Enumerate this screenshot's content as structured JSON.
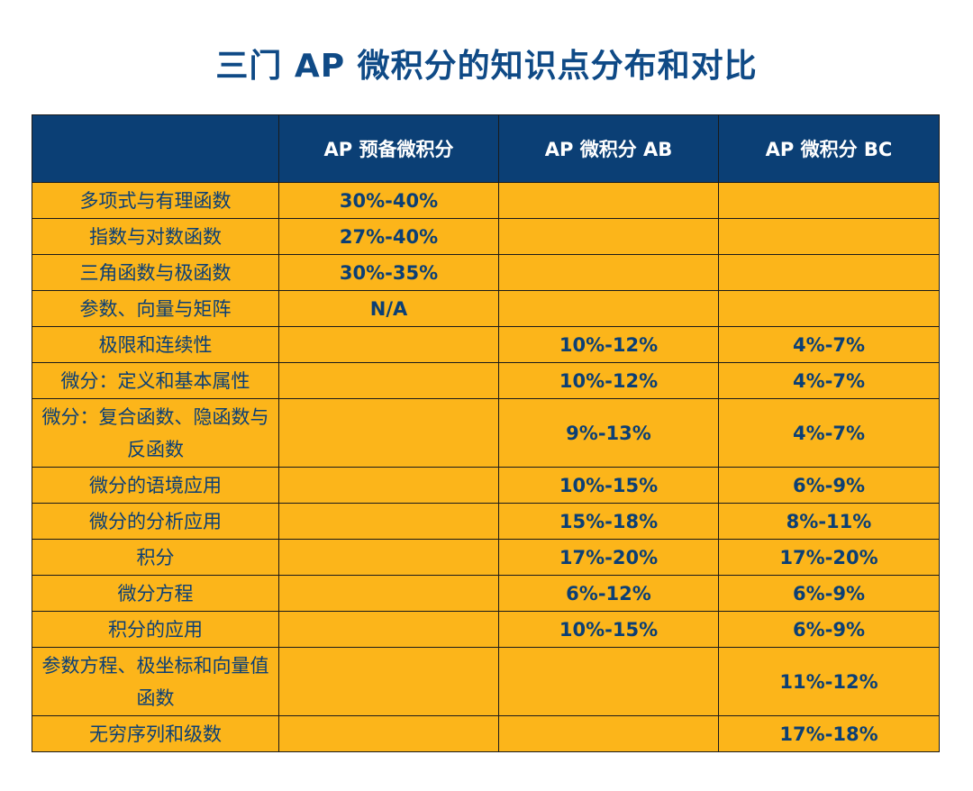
{
  "title": "三门 AP 微积分的知识点分布和对比",
  "table": {
    "headers": [
      "",
      "AP 预备微积分",
      "AP 微积分 AB",
      "AP 微积分 BC"
    ],
    "rows": [
      {
        "topic": "多项式与有理函数",
        "precalc": "30%-40%",
        "ab": "",
        "bc": ""
      },
      {
        "topic": "指数与对数函数",
        "precalc": "27%-40%",
        "ab": "",
        "bc": ""
      },
      {
        "topic": "三角函数与极函数",
        "precalc": "30%-35%",
        "ab": "",
        "bc": ""
      },
      {
        "topic": "参数、向量与矩阵",
        "precalc": "N/A",
        "ab": "",
        "bc": ""
      },
      {
        "topic": "极限和连续性",
        "precalc": "",
        "ab": "10%-12%",
        "bc": "4%-7%"
      },
      {
        "topic": "微分：定义和基本属性",
        "precalc": "",
        "ab": "10%-12%",
        "bc": "4%-7%"
      },
      {
        "topic": "微分：复合函数、隐函数与反函数",
        "precalc": "",
        "ab": "9%-13%",
        "bc": "4%-7%"
      },
      {
        "topic": "微分的语境应用",
        "precalc": "",
        "ab": "10%-15%",
        "bc": "6%-9%"
      },
      {
        "topic": "微分的分析应用",
        "precalc": "",
        "ab": "15%-18%",
        "bc": "8%-11%"
      },
      {
        "topic": "积分",
        "precalc": "",
        "ab": "17%-20%",
        "bc": "17%-20%"
      },
      {
        "topic": "微分方程",
        "precalc": "",
        "ab": "6%-12%",
        "bc": "6%-9%"
      },
      {
        "topic": "积分的应用",
        "precalc": "",
        "ab": "10%-15%",
        "bc": "6%-9%"
      },
      {
        "topic": "参数方程、极坐标和向量值函数",
        "precalc": "",
        "ab": "",
        "bc": "11%-12%"
      },
      {
        "topic": "无穷序列和级数",
        "precalc": "",
        "ab": "",
        "bc": "17%-18%"
      }
    ]
  }
}
